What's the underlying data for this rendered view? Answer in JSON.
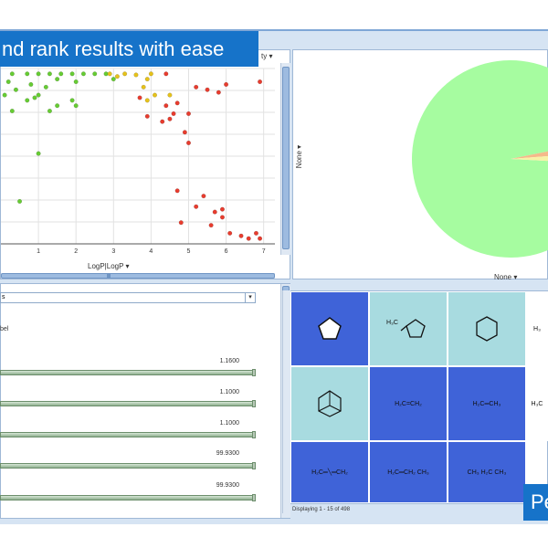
{
  "banner": {
    "text": "nd rank results with ease"
  },
  "banner2": {
    "text": "Pe"
  },
  "scatter": {
    "x_axis_label": "LogP|LogP",
    "x_axis_arrow": "▾",
    "y_axis_label": "",
    "color_by_label": "ty",
    "color_by_arrow": "▾",
    "x_ticks": [
      "1",
      "2",
      "3",
      "4",
      "5",
      "6",
      "7"
    ]
  },
  "pie": {
    "x_label": "None",
    "x_arrow": "▾",
    "y_label": "None",
    "y_arrow": "▾"
  },
  "properties": {
    "dropdown_value": "s",
    "dropdown_arrow": "▾",
    "sublabel": "bel",
    "sliders": [
      {
        "value": "1.1600"
      },
      {
        "value": "1.1000"
      },
      {
        "value": "1.1000"
      },
      {
        "value": "99.9300"
      },
      {
        "value": "99.9300"
      }
    ]
  },
  "grid": {
    "status": "Displaying 1 - 15 of 498",
    "cells": [
      {
        "label": "cyclopentane"
      },
      {
        "label": "H3C-methylcyclopentane",
        "text": "H₃C"
      },
      {
        "label": "cyclohexane"
      },
      {
        "label": "partial",
        "text": "H₃"
      },
      {
        "label": "adamantane"
      },
      {
        "label": "ethylene",
        "text": "H₂C=CH₂"
      },
      {
        "label": "propene",
        "text": "H₂C═CH₃"
      },
      {
        "label": "partial2",
        "text": "H₃C"
      },
      {
        "label": "butadiene",
        "text": "H₂C═╲═CH₂"
      },
      {
        "label": "isoprene",
        "text": "H₂C═CH₂ CH₃"
      },
      {
        "label": "dimethylbutene",
        "text": "CH₃ H₂C CH₃"
      }
    ]
  },
  "chart_data": {
    "type": "scatter",
    "xlabel": "LogP|LogP",
    "x_ticks": [
      1,
      2,
      3,
      4,
      5,
      6,
      7
    ],
    "series": [
      {
        "color": "#66cc33",
        "points": [
          [
            0.3,
            1.0
          ],
          [
            0.7,
            1.0
          ],
          [
            1.0,
            1.0
          ],
          [
            1.3,
            1.0
          ],
          [
            1.6,
            1.0
          ],
          [
            1.9,
            1.0
          ],
          [
            2.2,
            1.0
          ],
          [
            2.5,
            1.0
          ],
          [
            2.8,
            1.0
          ],
          [
            0.2,
            0.85
          ],
          [
            0.4,
            0.7
          ],
          [
            0.8,
            0.8
          ],
          [
            0.9,
            0.55
          ],
          [
            1.0,
            0.6
          ],
          [
            1.5,
            0.9
          ],
          [
            1.9,
            0.5
          ],
          [
            2.0,
            0.4
          ],
          [
            0.1,
            0.6
          ],
          [
            1.3,
            0.3
          ],
          [
            1.5,
            0.4
          ],
          [
            0.7,
            0.5
          ],
          [
            0.3,
            0.3
          ],
          [
            1.0,
            -0.5
          ],
          [
            0.5,
            -1.4
          ],
          [
            2.0,
            0.85
          ],
          [
            1.2,
            0.75
          ],
          [
            3.0,
            0.9
          ]
        ]
      },
      {
        "color": "#e6c21a",
        "points": [
          [
            2.9,
            1.0
          ],
          [
            3.1,
            0.95
          ],
          [
            3.3,
            1.0
          ],
          [
            3.6,
            0.98
          ],
          [
            3.9,
            0.9
          ],
          [
            4.0,
            1.0
          ],
          [
            3.8,
            0.75
          ],
          [
            4.1,
            0.6
          ],
          [
            3.9,
            0.5
          ],
          [
            4.5,
            0.6
          ]
        ]
      },
      {
        "color": "#e83c2e",
        "points": [
          [
            3.7,
            0.55
          ],
          [
            3.9,
            0.2
          ],
          [
            4.3,
            0.1
          ],
          [
            4.5,
            0.15
          ],
          [
            4.6,
            0.25
          ],
          [
            4.4,
            0.4
          ],
          [
            4.7,
            0.45
          ],
          [
            5.0,
            0.25
          ],
          [
            4.9,
            -0.1
          ],
          [
            5.0,
            -0.3
          ],
          [
            5.2,
            0.75
          ],
          [
            5.5,
            0.7
          ],
          [
            5.8,
            0.65
          ],
          [
            6.0,
            0.8
          ],
          [
            6.9,
            0.85
          ],
          [
            4.7,
            -1.2
          ],
          [
            5.2,
            -1.5
          ],
          [
            5.4,
            -1.3
          ],
          [
            5.7,
            -1.6
          ],
          [
            5.9,
            -1.55
          ],
          [
            4.8,
            -1.8
          ],
          [
            5.6,
            -1.85
          ],
          [
            6.1,
            -2.0
          ],
          [
            6.4,
            -2.05
          ],
          [
            6.6,
            -2.1
          ],
          [
            6.8,
            -2.0
          ],
          [
            6.9,
            -2.1
          ],
          [
            4.4,
            1.0
          ],
          [
            5.9,
            -1.7
          ]
        ]
      }
    ],
    "pie": {
      "slices": [
        {
          "label": "green",
          "value": 96,
          "color": "#a6fca0"
        },
        {
          "label": "orange",
          "value": 2,
          "color": "#f5b98a"
        },
        {
          "label": "yellow",
          "value": 2,
          "color": "#f7f2a6"
        }
      ]
    }
  }
}
